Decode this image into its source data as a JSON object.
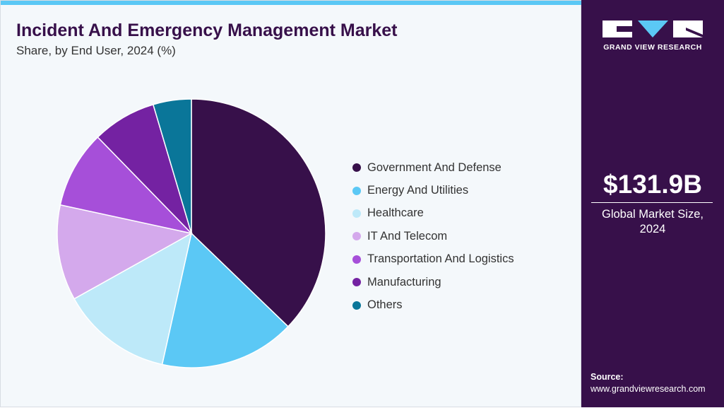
{
  "header": {
    "title": "Incident And Emergency Management Market",
    "subtitle": "Share, by End User, 2024 (%)"
  },
  "chart_data": {
    "type": "pie",
    "title": "Incident And Emergency Management Market",
    "subtitle": "Share, by End User, 2024 (%)",
    "categories": [
      "Government And Defense",
      "Energy And Utilities",
      "Healthcare",
      "IT And Telecom",
      "Transportation And Logistics",
      "Manufacturing",
      "Others"
    ],
    "values": [
      37.2,
      16.3,
      13.4,
      11.5,
      9.3,
      7.7,
      4.6
    ],
    "colors": [
      "#37104a",
      "#5bc8f5",
      "#bde9f9",
      "#d4a9ec",
      "#a64fd9",
      "#7422a2",
      "#0a7699"
    ],
    "legend_placement": "right",
    "start_angle": "top, clockwise"
  },
  "sidebar": {
    "logo_text": "GRAND VIEW RESEARCH",
    "market_size": "$131.9B",
    "market_caption_1": "Global Market Size,",
    "market_caption_2": "2024",
    "source_label": "Source:",
    "source_url": "www.grandviewresearch.com"
  },
  "colors": {
    "brand": "#37104a",
    "accent": "#5bc8f5"
  }
}
